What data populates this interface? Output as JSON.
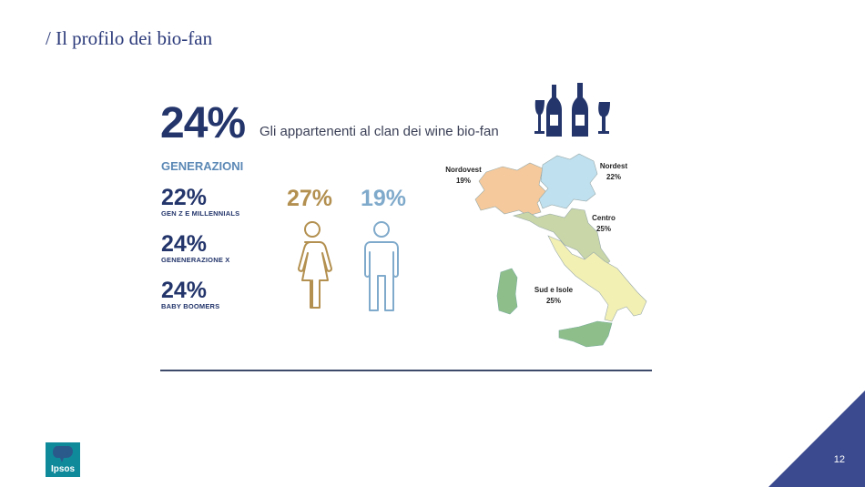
{
  "slide": {
    "title": "/ Il profilo dei bio-fan",
    "page_number": "12"
  },
  "hero": {
    "percent": "24%",
    "text": "Gli appartenenti al clan dei wine bio-fan",
    "icon": "wine-bottles-glasses-icon"
  },
  "generations": {
    "heading": "GENERAZIONI",
    "items": [
      {
        "percent": "22%",
        "label": "GEN Z E MILLENNIALS"
      },
      {
        "percent": "24%",
        "label": "GENENERAZIONE X"
      },
      {
        "percent": "24%",
        "label": "BABY BOOMERS"
      }
    ]
  },
  "gender": {
    "female": {
      "percent": "27%",
      "icon": "woman-icon",
      "color": "#b39050"
    },
    "male": {
      "percent": "19%",
      "icon": "man-icon",
      "color": "#80aacb"
    }
  },
  "map": {
    "icon": "italy-map",
    "regions": [
      {
        "name": "Nordovest",
        "value": "19%",
        "color": "#f5c99b"
      },
      {
        "name": "Nordest",
        "value": "22%",
        "color": "#bfe0ef"
      },
      {
        "name": "Centro",
        "value": "25%",
        "color": "#c9d6a8"
      },
      {
        "name": "Sud e Isole",
        "value": "25%",
        "color": "#f3f0b4"
      }
    ],
    "islands_color": "#8ebf8a"
  },
  "footer": {
    "logo_text": "Ipsos",
    "accent_color": "#3b4a8e"
  }
}
